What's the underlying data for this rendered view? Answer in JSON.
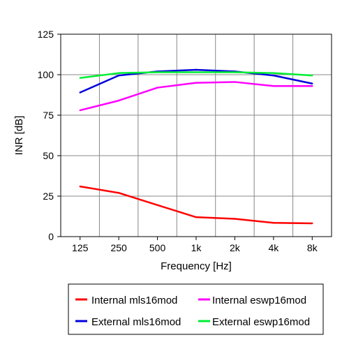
{
  "chart_data": {
    "type": "line",
    "title": "",
    "xlabel": "Frequency [Hz]",
    "ylabel": "INR [dB]",
    "categories": [
      "125",
      "250",
      "500",
      "1k",
      "2k",
      "4k",
      "8k"
    ],
    "ylim": [
      0,
      125
    ],
    "yticks": [
      0,
      25,
      50,
      75,
      100,
      125
    ],
    "grid": true,
    "legend_position": "bottom",
    "series": [
      {
        "name": "Internal mls16mod",
        "color": "#ff0000",
        "values": [
          31,
          27,
          19.5,
          12,
          11,
          8.5,
          8.2
        ]
      },
      {
        "name": "Internal eswp16mod",
        "color": "#ff00ff",
        "values": [
          78,
          84,
          92,
          95,
          95.5,
          93,
          93
        ]
      },
      {
        "name": "External mls16mod",
        "color": "#0000dd",
        "values": [
          89,
          99.5,
          102,
          103,
          102,
          99.5,
          94.5
        ]
      },
      {
        "name": "External eswp16mod",
        "color": "#00ee33",
        "values": [
          98,
          101,
          101.5,
          101.5,
          101.5,
          101,
          99.5
        ]
      }
    ]
  }
}
